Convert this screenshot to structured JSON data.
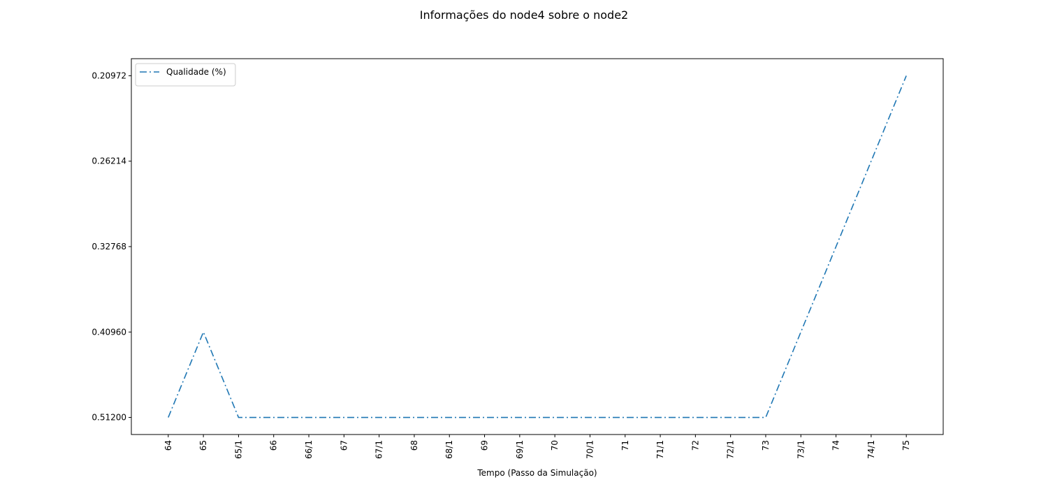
{
  "chart_data": {
    "type": "line",
    "title": "Informações do node4 sobre o node2",
    "x_label": "Tempo (Passo da Simulação)",
    "categories": [
      "64",
      "65",
      "65/1",
      "66",
      "66/1",
      "67",
      "67/1",
      "68",
      "68/1",
      "69",
      "69/1",
      "70",
      "70/1",
      "71",
      "71/1",
      "72",
      "72/1",
      "73",
      "73/1",
      "74",
      "74/1",
      "75"
    ],
    "yscale": "categorical",
    "yticks": [
      {
        "value": 0.512,
        "label": "0.51200"
      },
      {
        "value": 0.4096,
        "label": "0.40960"
      },
      {
        "value": 0.32768,
        "label": "0.32768"
      },
      {
        "value": 0.26214,
        "label": "0.26214"
      },
      {
        "value": 0.20972,
        "label": "0.20972"
      }
    ],
    "series": [
      {
        "name": "Qualidade (%)",
        "color": "#1f77b4",
        "linestyle": "dashdot",
        "values": [
          0.512,
          0.4096,
          0.512,
          0.512,
          0.512,
          0.512,
          0.512,
          0.512,
          0.512,
          0.512,
          0.512,
          0.512,
          0.512,
          0.512,
          0.512,
          0.512,
          0.512,
          0.512,
          0.4096,
          0.32768,
          0.26214,
          0.20972
        ]
      }
    ],
    "legend": "upper left"
  }
}
